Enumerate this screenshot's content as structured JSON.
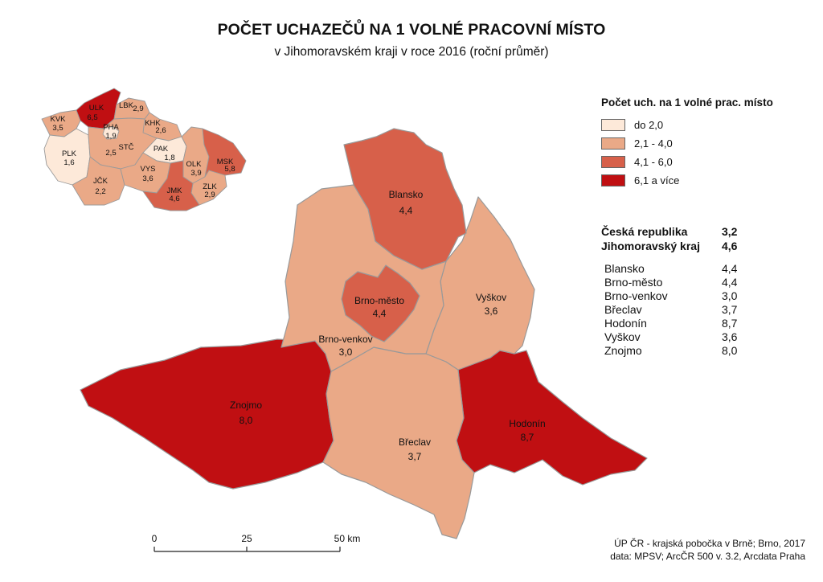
{
  "title": "POČET UCHAZEČŮ NA 1 VOLNÉ PRACOVNÍ MÍSTO",
  "subtitle": "v Jihomoravském kraji v roce 2016 (roční průměr)",
  "colors": {
    "class1": "#fde9d9",
    "class2": "#eaa987",
    "class3": "#d7604a",
    "class4": "#c00f12",
    "border": "#999999"
  },
  "legend": {
    "title": "Počet uch. na 1 volné prac. místo",
    "classes": [
      {
        "label": "do 2,0",
        "color": "#fde9d9"
      },
      {
        "label": "2,1 - 4,0",
        "color": "#eaa987"
      },
      {
        "label": "4,1 - 6,0",
        "color": "#d7604a"
      },
      {
        "label": "6,1 a více",
        "color": "#c00f12"
      }
    ]
  },
  "summary": [
    {
      "name": "Česká republika",
      "value": "3,2"
    },
    {
      "name": "Jihomoravský kraj",
      "value": "4,6"
    }
  ],
  "districts": [
    {
      "name": "Blansko",
      "value": "4,4"
    },
    {
      "name": "Brno-město",
      "value": "4,4"
    },
    {
      "name": "Brno-venkov",
      "value": "3,0"
    },
    {
      "name": "Břeclav",
      "value": "3,7"
    },
    {
      "name": "Hodonín",
      "value": "8,7"
    },
    {
      "name": "Vyškov",
      "value": "3,6"
    },
    {
      "name": "Znojmo",
      "value": "8,0"
    }
  ],
  "regions": [
    {
      "code": "KVK",
      "value": "3,5"
    },
    {
      "code": "ULK",
      "value": "6,5"
    },
    {
      "code": "LBK",
      "value": "2,9"
    },
    {
      "code": "PHA",
      "value": "1,9"
    },
    {
      "code": "KHK",
      "value": "2,6"
    },
    {
      "code": "STČ",
      "value": "2,5"
    },
    {
      "code": "PAK",
      "value": "1,8"
    },
    {
      "code": "PLK",
      "value": "1,6"
    },
    {
      "code": "MSK",
      "value": "5,8"
    },
    {
      "code": "OLK",
      "value": "3,9"
    },
    {
      "code": "VYS",
      "value": "3,6"
    },
    {
      "code": "ZLK",
      "value": "2,9"
    },
    {
      "code": "JČK",
      "value": "2,2"
    },
    {
      "code": "JMK",
      "value": "4,6"
    }
  ],
  "scale": {
    "labels": [
      "0",
      "25",
      "50 km"
    ]
  },
  "credits": {
    "line1": "ÚP ČR - krajská pobočka v Brně; Brno, 2017",
    "line2": "data: MPSV; ArcČR 500 v. 3.2, Arcdata Praha"
  }
}
